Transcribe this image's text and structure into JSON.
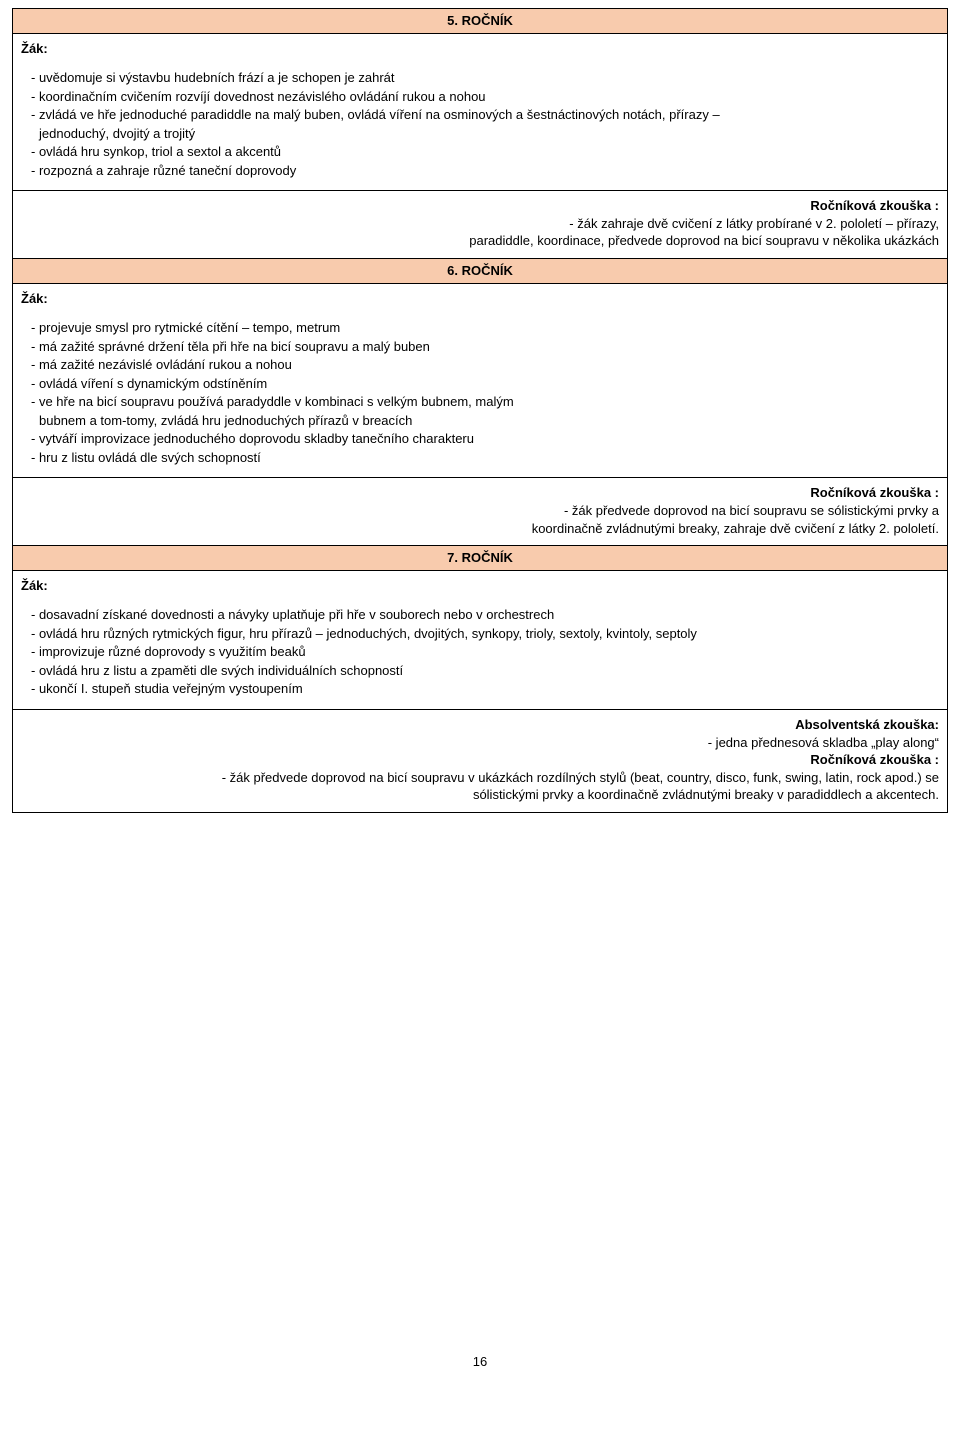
{
  "headers": {
    "h5": "5. ROČNÍK",
    "h6": "6. ROČNÍK",
    "h7": "7. ROČNÍK"
  },
  "student_label": "Žák:",
  "r5": {
    "items": [
      "- uvědomuje si výstavbu hudebních frází a je schopen je zahrát",
      "- koordinačním cvičením rozvíjí dovednost nezávislého ovládání rukou a nohou",
      "- zvládá ve hře jednoduché paradiddle na malý buben, ovládá víření na osminových a šestnáctinových notách, přírazy – "
    ],
    "item_cont": "jednoduchý, dvojitý a trojitý",
    "items2": [
      "- ovládá hru synkop, triol a sextol a akcentů",
      "- rozpozná a zahraje různé taneční doprovody"
    ]
  },
  "exam5": {
    "title": "Ročníková zkouška :",
    "line1": "- žák zahraje dvě cvičení z látky probírané v 2. pololetí – přírazy,",
    "line2": "paradiddle, koordinace, předvede doprovod na bicí soupravu v několika ukázkách"
  },
  "r6": {
    "items": [
      "- projevuje smysl pro rytmické cítění – tempo, metrum",
      "- má zažité správné držení těla při hře na bicí soupravu a malý buben",
      "- má zažité nezávislé ovládání rukou a nohou",
      "- ovládá víření s dynamickým odstíněním",
      "- ve hře na bicí soupravu používá paradyddle v kombinaci s velkým bubnem, malým"
    ],
    "item_cont": "bubnem a tom-tomy, zvládá hru jednoduchých přírazů v breacích",
    "items2": [
      "- vytváří improvizace jednoduchého doprovodu skladby tanečního charakteru",
      "- hru z listu ovládá dle svých schopností"
    ]
  },
  "exam6": {
    "title": "Ročníková zkouška :",
    "line1": "- žák předvede doprovod na bicí soupravu se sólistickými prvky a",
    "line2": "koordinačně zvládnutými breaky, zahraje dvě cvičení z látky 2. pololetí."
  },
  "r7": {
    "items": [
      "- dosavadní získané dovednosti a návyky uplatňuje při hře v souborech nebo v orchestrech",
      "- ovládá hru různých rytmických figur, hru přírazů – jednoduchých, dvojitých, synkopy,  trioly, sextoly, kvintoly, septoly",
      "- improvizuje různé doprovody s využitím beaků",
      "- ovládá hru z listu a zpaměti dle svých individuálních schopností",
      "- ukončí I. stupeň studia veřejným vystoupením"
    ]
  },
  "exam7": {
    "title1": "Absolventská zkouška:",
    "line1": "- jedna přednesová skladba „play along“",
    "title2": "Ročníková zkouška :",
    "line2": "- žák předvede doprovod na bicí soupravu v ukázkách rozdílných stylů (beat, country, disco, funk, swing, latin, rock apod.) se",
    "line3": "sólistickými prvky a koordinačně zvládnutými breaky v paradiddlech a akcentech."
  },
  "page_number": "16"
}
